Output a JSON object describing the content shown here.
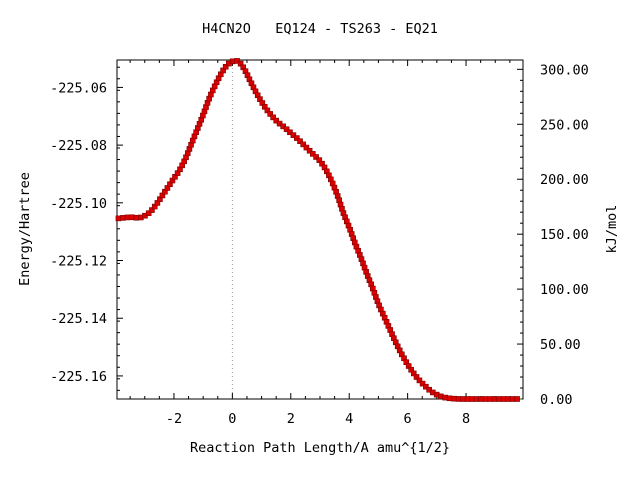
{
  "chart_data": {
    "type": "line",
    "title": "H4CN2O   EQ124 - TS263 - EQ21",
    "xlabel": "Reaction Path Length/A amu^{1/2}",
    "ylabel": "Energy/Hartree",
    "y2label": "kJ/mol",
    "xlim": [
      -3.95,
      9.95
    ],
    "ylim": [
      -225.168,
      -225.0505
    ],
    "y2lim": [
      0,
      308.5
    ],
    "x_ticks": [
      -2,
      0,
      2,
      4,
      6,
      8
    ],
    "x_tick_labels": [
      "-2",
      "0",
      "2",
      "4",
      "6",
      "8"
    ],
    "y_ticks": [
      -225.06,
      -225.08,
      -225.1,
      -225.12,
      -225.14,
      -225.16
    ],
    "y_tick_labels": [
      "-225.06",
      "-225.08",
      "-225.10",
      "-225.12",
      "-225.14",
      "-225.16"
    ],
    "y2_ticks": [
      0,
      50,
      100,
      150,
      200,
      250,
      300
    ],
    "y2_tick_labels": [
      "0.00",
      "50.00",
      "100.00",
      "150.00",
      "200.00",
      "250.00",
      "300.00"
    ],
    "ts_marker_x": 0,
    "grid": false,
    "legend": "none",
    "colors": {
      "line": "#008000",
      "marker": "#dd0000",
      "ts_line": "#999999"
    },
    "series": [
      {
        "x": [
          -3.9,
          -3.5,
          -3.2,
          -3.0,
          -2.8,
          -2.6,
          -2.4,
          -2.2,
          -2.0,
          -1.8,
          -1.6,
          -1.4,
          -1.2,
          -1.0,
          -0.8,
          -0.6,
          -0.4,
          -0.2,
          0.0,
          0.2,
          0.4,
          0.6,
          0.8,
          1.0,
          1.2,
          1.5,
          1.8,
          2.0,
          2.2,
          2.4,
          2.6,
          2.8,
          3.0,
          3.2,
          3.4,
          3.6,
          3.8,
          4.0,
          4.2,
          4.4,
          4.6,
          4.8,
          5.0,
          5.2,
          5.4,
          5.6,
          5.8,
          6.0,
          6.2,
          6.4,
          6.6,
          6.8,
          7.0,
          7.2,
          7.4,
          7.6,
          7.8,
          8.0,
          8.5,
          9.0,
          9.5,
          9.9
        ],
        "y": [
          -225.1054,
          -225.105,
          -225.1052,
          -225.1045,
          -225.103,
          -225.1005,
          -225.0975,
          -225.0945,
          -225.0915,
          -225.0885,
          -225.0845,
          -225.0795,
          -225.0745,
          -225.0695,
          -225.064,
          -225.0595,
          -225.0555,
          -225.0525,
          -225.051,
          -225.051,
          -225.0535,
          -225.0575,
          -225.0615,
          -225.065,
          -225.068,
          -225.0715,
          -225.074,
          -225.0758,
          -225.0775,
          -225.0795,
          -225.0815,
          -225.0835,
          -225.0855,
          -225.0885,
          -225.0925,
          -225.0975,
          -225.1035,
          -225.1085,
          -225.114,
          -225.119,
          -225.1245,
          -225.1295,
          -225.135,
          -225.1395,
          -225.144,
          -225.1485,
          -225.1525,
          -225.156,
          -225.159,
          -225.1615,
          -225.1635,
          -225.1653,
          -225.1665,
          -225.1673,
          -225.1677,
          -225.1679,
          -225.168,
          -225.168,
          -225.168,
          -225.168,
          -225.168,
          -225.168
        ]
      }
    ]
  }
}
